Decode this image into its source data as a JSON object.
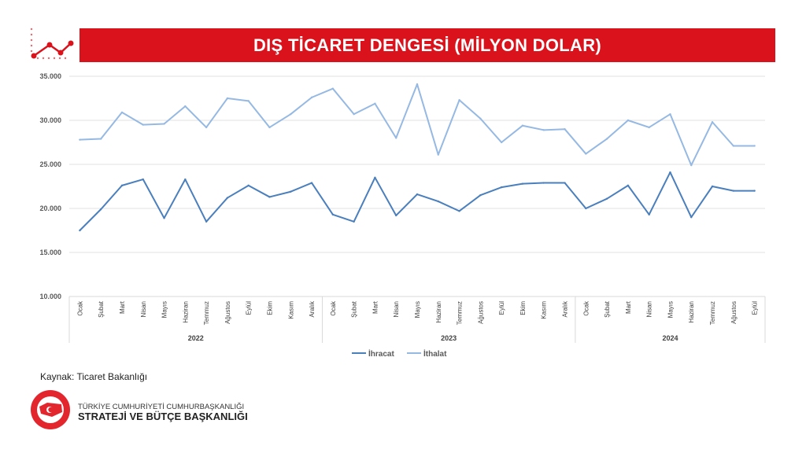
{
  "header": {
    "title": "DIŞ TİCARET DENGESİ (MİLYON DOLAR)"
  },
  "source": "Kaynak: Ticaret Bakanlığı",
  "org": {
    "line1": "TÜRKİYE CUMHURİYETİ CUMHURBAŞKANLIĞI",
    "line2": "STRATEJİ VE BÜTÇE BAŞKANLIĞI",
    "seal_text": "T.C. CUMHURBAŞKANLIĞI STRATEJİ VE BÜTÇE BAŞKANLIĞI"
  },
  "colors": {
    "accent": "#d9121c",
    "ihracat": "#4a7fbd",
    "ithalat": "#95b9e3"
  },
  "chart_data": {
    "type": "line",
    "title": "DIŞ TİCARET DENGESİ (MİLYON DOLAR)",
    "ylim": [
      10000,
      35000
    ],
    "yticks": [
      "10.000",
      "15.000",
      "20.000",
      "25.000",
      "30.000",
      "35.000"
    ],
    "grid": true,
    "legend": "bottom",
    "years": [
      "2022",
      "2023",
      "2024"
    ],
    "categories": [
      "Ocak",
      "Şubat",
      "Mart",
      "Nisan",
      "Mayıs",
      "Haziran",
      "Temmuz",
      "Ağustos",
      "Eylül",
      "Ekim",
      "Kasım",
      "Aralık",
      "Ocak",
      "Şubat",
      "Mart",
      "Nisan",
      "Mayıs",
      "Haziran",
      "Temmuz",
      "Ağustos",
      "Eylül",
      "Ekim",
      "Kasım",
      "Aralık",
      "Ocak",
      "Şubat",
      "Mart",
      "Nisan",
      "Mayıs",
      "Haziran",
      "Temmuz",
      "Ağustos",
      "Eylül"
    ],
    "series": [
      {
        "name": "İhracat",
        "values": [
          17500,
          19900,
          22600,
          23300,
          18900,
          23300,
          18500,
          21200,
          22600,
          21300,
          21900,
          22900,
          19300,
          18500,
          23500,
          19200,
          21600,
          20800,
          19700,
          21500,
          22400,
          22800,
          22900,
          22900,
          20000,
          21100,
          22600,
          19300,
          24100,
          19000,
          22500,
          22000,
          22000
        ]
      },
      {
        "name": "İthalat",
        "values": [
          27800,
          27900,
          30900,
          29500,
          29600,
          31600,
          29200,
          32500,
          32200,
          29200,
          30700,
          32600,
          33600,
          30700,
          31900,
          28000,
          34100,
          26100,
          32300,
          30200,
          27500,
          29400,
          28900,
          29000,
          26200,
          27900,
          30000,
          29200,
          30700,
          24900,
          29800,
          27100,
          27100
        ]
      }
    ]
  }
}
